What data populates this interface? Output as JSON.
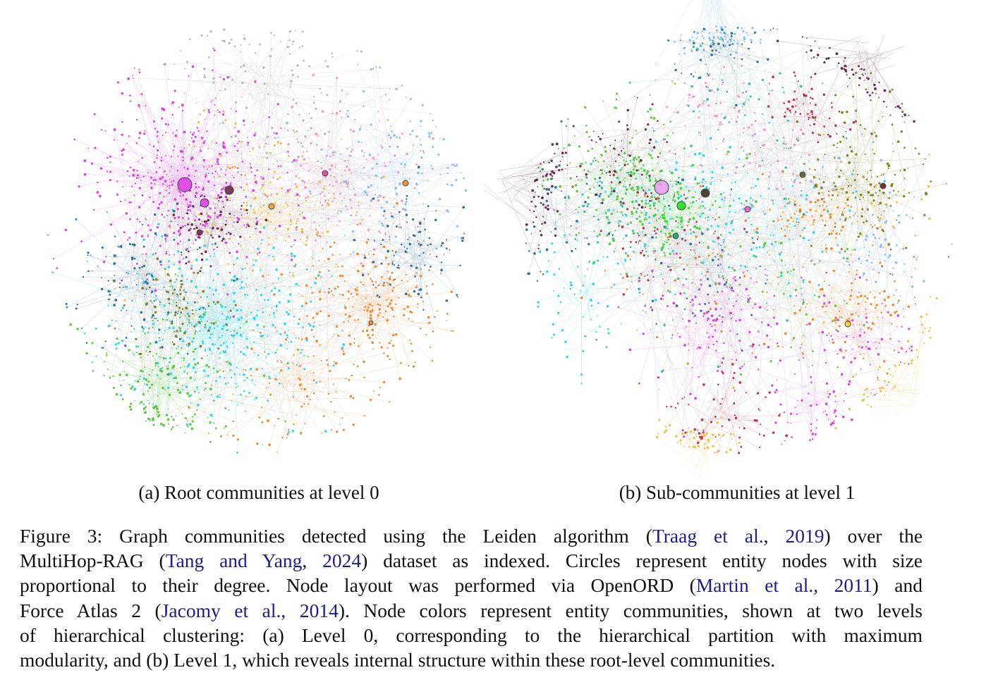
{
  "figure": {
    "subfigures": [
      {
        "caption": "(a) Root communities at level 0"
      },
      {
        "caption": "(b) Sub-communities at level 1"
      }
    ],
    "caption": {
      "lines": [
        [
          {
            "text": "Figure 3: Graph communities detected using the Leiden algorithm ("
          },
          {
            "text": "Traag et al.",
            "link": true
          },
          {
            "text": ", "
          },
          {
            "text": "2019",
            "link": true
          },
          {
            "text": ") over the"
          }
        ],
        [
          {
            "text": "MultiHop-RAG ("
          },
          {
            "text": "Tang and Yang",
            "link": true
          },
          {
            "text": ", "
          },
          {
            "text": "2024",
            "link": true
          },
          {
            "text": ") dataset as indexed. Circles represent entity nodes with size"
          }
        ],
        [
          {
            "text": "proportional to their degree. Node layout was performed via OpenORD ("
          },
          {
            "text": "Martin et al., 2011",
            "link": true
          },
          {
            "text": ") and"
          }
        ],
        [
          {
            "text": "Force Atlas 2 ("
          },
          {
            "text": "Jacomy et al., 2014",
            "link": true
          },
          {
            "text": "). Node colors represent entity communities, shown at two levels"
          }
        ],
        [
          {
            "text": "of hierarchical clustering: (a) Level 0, corresponding to the hierarchical partition with maximum"
          }
        ],
        [
          {
            "text": "modularity, and (b) Level 1, which reveals internal structure within these root-level communities."
          }
        ]
      ]
    }
  }
}
